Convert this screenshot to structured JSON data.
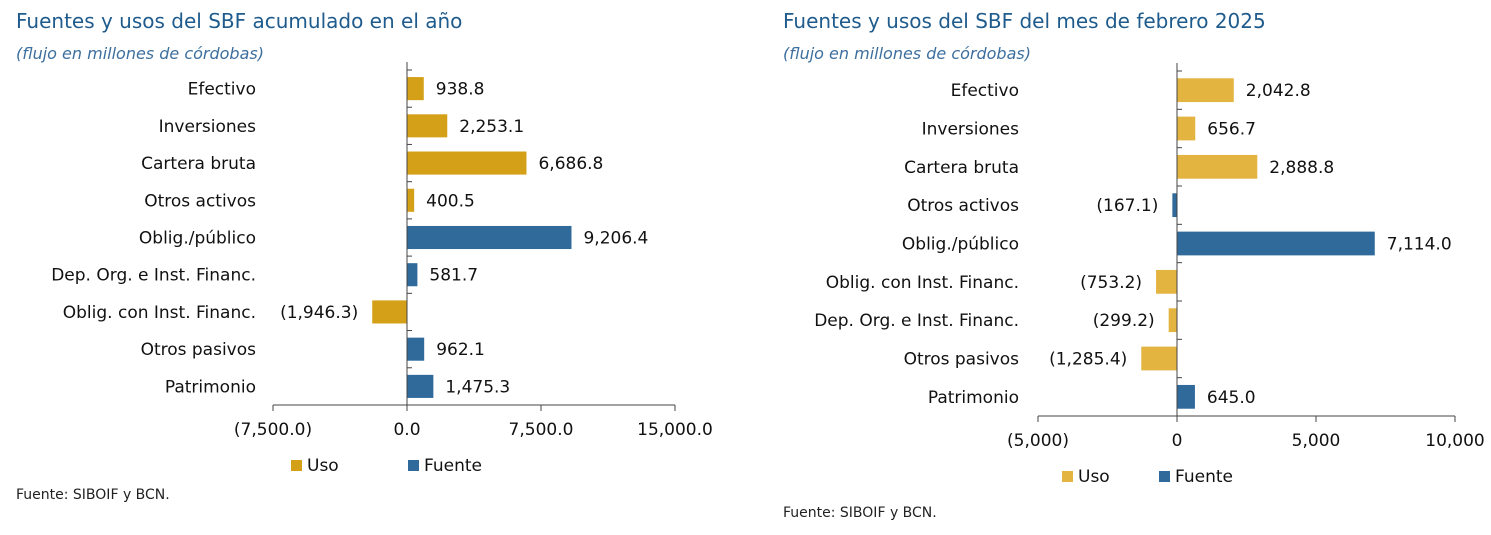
{
  "colors": {
    "left_uso": "#d4a017",
    "left_fuente": "#2f6a9b",
    "right_uso": "#e3b440",
    "right_fuente": "#2f6a9b",
    "title": "#1f5b8c"
  },
  "chart_data": [
    {
      "type": "bar",
      "orientation": "horizontal",
      "title": "Fuentes y usos del SBF acumulado en el año",
      "subtitle": "(flujo en millones de córdobas)",
      "source": "Fuente: SIBOIF y BCN.",
      "categories": [
        "Efectivo",
        "Inversiones",
        "Cartera bruta",
        "Otros activos",
        "Oblig./público",
        "Dep. Org. e Inst. Financ.",
        "Oblig. con Inst. Financ.",
        "Otros pasivos",
        "Patrimonio"
      ],
      "values": [
        938.8,
        2253.1,
        6686.8,
        400.5,
        9206.4,
        581.7,
        -1946.3,
        962.1,
        1475.3
      ],
      "value_labels": [
        "938.8",
        "2,253.1",
        "6,686.8",
        "400.5",
        "9,206.4",
        "581.7",
        "(1,946.3)",
        "962.1",
        "1,475.3"
      ],
      "groups": [
        "uso",
        "uso",
        "uso",
        "uso",
        "fuente",
        "fuente",
        "uso",
        "fuente",
        "fuente"
      ],
      "legend": [
        {
          "key": "uso",
          "label": "Uso"
        },
        {
          "key": "fuente",
          "label": "Fuente"
        }
      ],
      "legend_placement": "bottom",
      "xlim": [
        -7500,
        15000
      ],
      "xticks": [
        -7500,
        0,
        7500,
        15000
      ],
      "xtick_labels": [
        "(7,500.0)",
        "0.0",
        "7,500.0",
        "15,000.0"
      ],
      "grid": false
    },
    {
      "type": "bar",
      "orientation": "horizontal",
      "title": "Fuentes y usos del SBF del mes de febrero 2025",
      "subtitle": "(flujo en millones de córdobas)",
      "source": "Fuente: SIBOIF y BCN.",
      "categories": [
        "Efectivo",
        "Inversiones",
        "Cartera bruta",
        "Otros activos",
        "Oblig./público",
        "Oblig. con Inst. Financ.",
        "Dep. Org. e Inst. Financ.",
        "Otros pasivos",
        "Patrimonio"
      ],
      "values": [
        2042.8,
        656.7,
        2888.8,
        -167.1,
        7114.0,
        -753.2,
        -299.2,
        -1285.4,
        645.0
      ],
      "value_labels": [
        "2,042.8",
        "656.7",
        "2,888.8",
        "(167.1)",
        "7,114.0",
        "(753.2)",
        "(299.2)",
        "(1,285.4)",
        "645.0"
      ],
      "groups": [
        "uso",
        "uso",
        "uso",
        "fuente",
        "fuente",
        "uso",
        "uso",
        "uso",
        "fuente"
      ],
      "legend": [
        {
          "key": "uso",
          "label": "Uso"
        },
        {
          "key": "fuente",
          "label": "Fuente"
        }
      ],
      "legend_placement": "bottom",
      "xlim": [
        -5000,
        10000
      ],
      "xticks": [
        -5000,
        0,
        5000,
        10000
      ],
      "xtick_labels": [
        "(5,000)",
        "0",
        "5,000",
        "10,000"
      ],
      "grid": false
    }
  ]
}
